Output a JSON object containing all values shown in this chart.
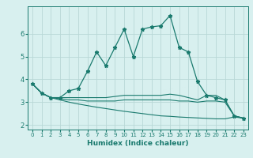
{
  "xlabel": "Humidex (Indice chaleur)",
  "x": [
    0,
    1,
    2,
    3,
    4,
    5,
    6,
    7,
    8,
    9,
    10,
    11,
    12,
    13,
    14,
    15,
    16,
    17,
    18,
    19,
    20,
    21,
    22,
    23
  ],
  "line1": [
    3.8,
    3.4,
    3.2,
    3.2,
    3.5,
    3.6,
    4.35,
    5.2,
    4.6,
    5.4,
    6.2,
    5.0,
    6.2,
    6.3,
    6.35,
    6.8,
    5.4,
    5.2,
    3.9,
    3.3,
    3.2,
    3.1,
    2.4,
    2.3
  ],
  "line2": [
    3.8,
    3.4,
    3.2,
    3.2,
    3.2,
    3.2,
    3.2,
    3.2,
    3.2,
    3.25,
    3.3,
    3.3,
    3.3,
    3.3,
    3.3,
    3.35,
    3.3,
    3.2,
    3.1,
    3.3,
    3.3,
    3.1,
    2.4,
    2.3
  ],
  "line3": [
    3.8,
    3.4,
    3.2,
    3.15,
    3.1,
    3.1,
    3.05,
    3.05,
    3.05,
    3.05,
    3.1,
    3.1,
    3.1,
    3.1,
    3.1,
    3.1,
    3.05,
    3.05,
    3.0,
    3.05,
    3.05,
    3.0,
    2.4,
    2.3
  ],
  "line4": [
    3.8,
    3.4,
    3.2,
    3.1,
    3.0,
    2.92,
    2.85,
    2.78,
    2.72,
    2.66,
    2.6,
    2.55,
    2.5,
    2.45,
    2.4,
    2.38,
    2.35,
    2.33,
    2.31,
    2.29,
    2.27,
    2.27,
    2.35,
    2.3
  ],
  "line_color": "#1a7a6e",
  "bg_color": "#d8f0ef",
  "grid_color": "#b8d8d6",
  "ylim": [
    1.8,
    7.2
  ],
  "xlim": [
    -0.5,
    23.5
  ],
  "yticks": [
    2,
    3,
    4,
    5,
    6
  ],
  "xticks": [
    0,
    1,
    2,
    3,
    4,
    5,
    6,
    7,
    8,
    9,
    10,
    11,
    12,
    13,
    14,
    15,
    16,
    17,
    18,
    19,
    20,
    21,
    22,
    23
  ]
}
